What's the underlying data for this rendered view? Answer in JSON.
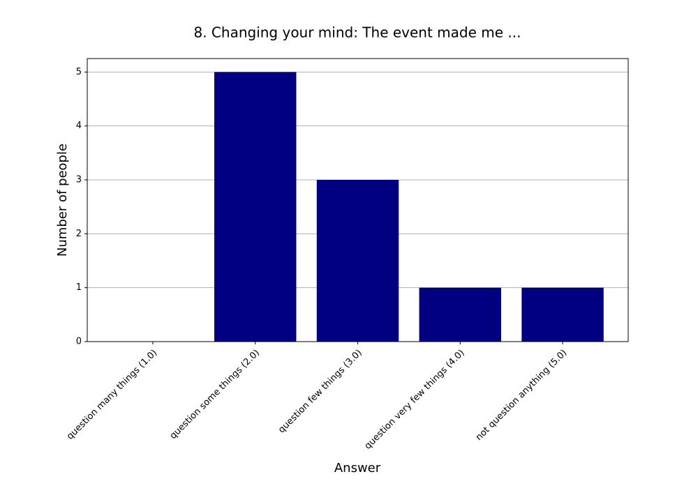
{
  "chart_data": {
    "type": "bar",
    "title": "8. Changing your mind: The event made me ...",
    "x_label": "Answer",
    "y_label": "Number of people",
    "categories": [
      "question many things (1.0)",
      "question some things (2.0)",
      "question few things (3.0)",
      "question very few things (4.0)",
      "not question anything (5.0)"
    ],
    "values": [
      0,
      5,
      3,
      1,
      1
    ],
    "color": "#000080",
    "ylim": [
      0,
      5.25
    ],
    "yticks": [
      0,
      1,
      2,
      3,
      4,
      5
    ],
    "grid": true
  }
}
